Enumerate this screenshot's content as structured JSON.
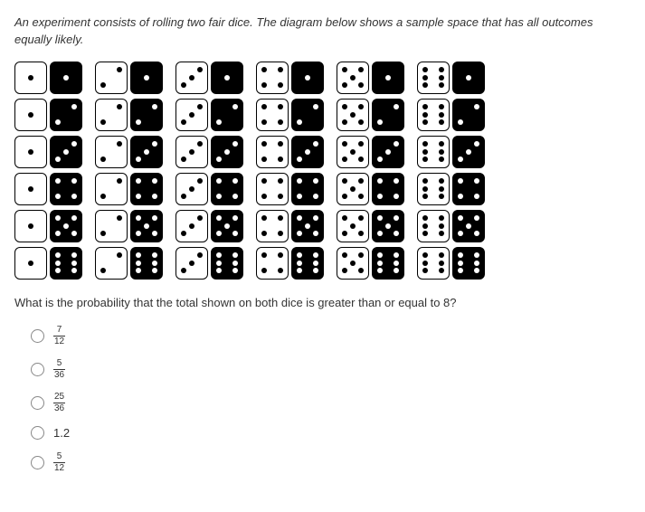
{
  "prompt": "An experiment consists of rolling two fair dice. The diagram below shows a sample space that has all outcomes equally likely.",
  "question": "What is the probability that the total shown on both dice is greater than or equal to 8?",
  "dice": {
    "white_values": [
      1,
      2,
      3,
      4,
      5,
      6
    ],
    "black_values": [
      1,
      2,
      3,
      4,
      5,
      6
    ]
  },
  "options": [
    {
      "type": "fraction",
      "num": "7",
      "den": "12"
    },
    {
      "type": "fraction",
      "num": "5",
      "den": "36"
    },
    {
      "type": "fraction",
      "num": "25",
      "den": "36"
    },
    {
      "type": "plain",
      "text": "1.2"
    },
    {
      "type": "fraction",
      "num": "5",
      "den": "12"
    }
  ],
  "pip_layouts": {
    "1": [
      5
    ],
    "2": [
      3,
      7
    ],
    "3": [
      3,
      5,
      7
    ],
    "4": [
      1,
      3,
      7,
      9
    ],
    "5": [
      1,
      3,
      5,
      7,
      9
    ],
    "6": [
      1,
      3,
      4,
      6,
      7,
      9
    ]
  }
}
